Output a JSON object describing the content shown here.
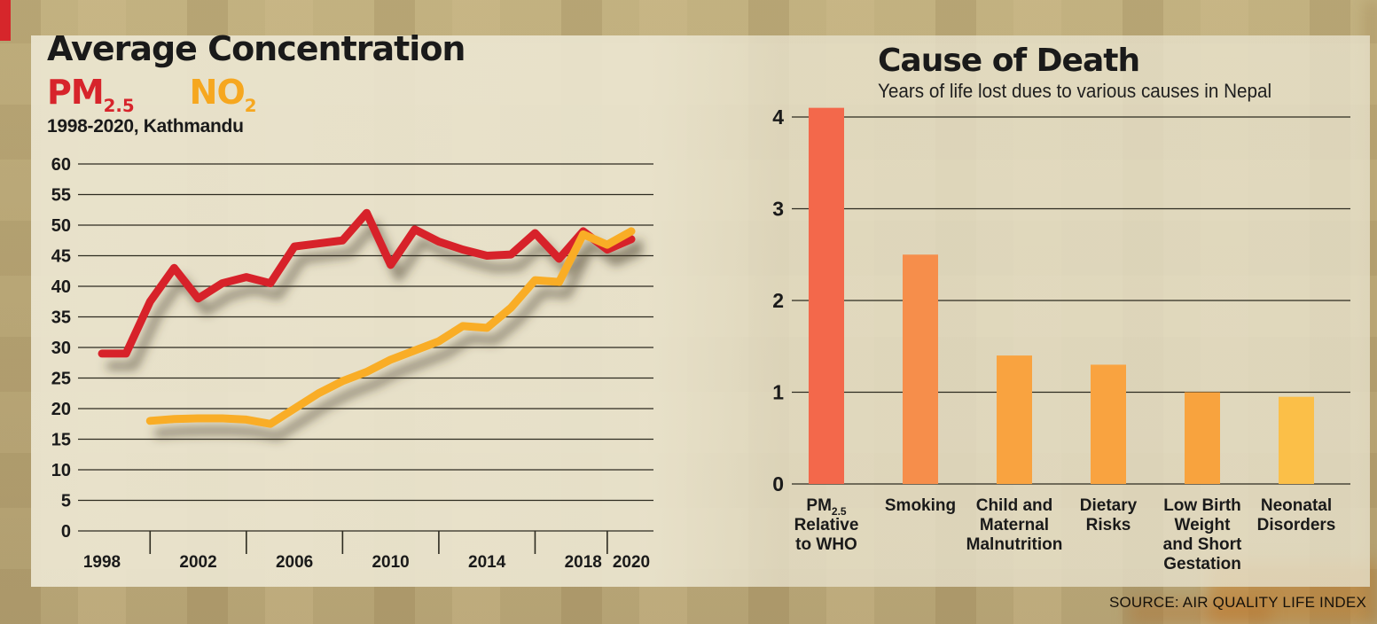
{
  "page": {
    "source_label": "SOURCE: AIR QUALITY LIFE INDEX",
    "accent_red": "#d6262b",
    "background": "#c6b88a",
    "panel": "#e9e3cd"
  },
  "left_chart": {
    "title": "Average Concentration",
    "subtitle": "1998-2020, Kathmandu",
    "legend": [
      {
        "name": "pm25",
        "label": "PM",
        "sub": "2.5",
        "color": "#d7242b"
      },
      {
        "name": "no2",
        "label": "NO",
        "sub": "2",
        "color": "#f6a71f"
      }
    ],
    "chart_data": {
      "type": "line",
      "x": [
        1998,
        1999,
        2000,
        2001,
        2002,
        2003,
        2004,
        2005,
        2006,
        2007,
        2008,
        2009,
        2010,
        2011,
        2012,
        2013,
        2014,
        2015,
        2016,
        2017,
        2018,
        2019,
        2020
      ],
      "series": [
        {
          "name": "PM2.5",
          "color": "#d7242b",
          "values": [
            29,
            29,
            37.5,
            43,
            38,
            40.5,
            41.5,
            40.5,
            46.5,
            47,
            47.5,
            52,
            43.5,
            49.3,
            47.3,
            46,
            45,
            45.2,
            48.7,
            44.5,
            49,
            46,
            47.7
          ]
        },
        {
          "name": "NO2",
          "color": "#f9ad26",
          "values": [
            null,
            null,
            18,
            18.3,
            18.4,
            18.4,
            18.2,
            17.5,
            20,
            22.5,
            24.5,
            26,
            28,
            29.5,
            31,
            33.5,
            33.2,
            36.5,
            41,
            40.7,
            48.5,
            46.8,
            49
          ]
        }
      ],
      "ylim": [
        0,
        60
      ],
      "yticks": [
        0,
        5,
        10,
        15,
        20,
        25,
        30,
        35,
        40,
        45,
        50,
        55,
        60
      ],
      "xtick_labels": [
        1998,
        2002,
        2006,
        2010,
        2014,
        2018,
        2020
      ],
      "grid": true,
      "legend_position": "top-left"
    }
  },
  "right_chart": {
    "title": "Cause of Death",
    "subtitle": "Years of life lost dues to various causes in Nepal",
    "chart_data": {
      "type": "bar",
      "categories": [
        {
          "name": "pm25-relative-to-who",
          "lines": [
            {
              "main": "PM",
              "sub": "2.5"
            },
            "Relative",
            "to WHO"
          ]
        },
        {
          "name": "smoking",
          "lines": [
            "Smoking"
          ]
        },
        {
          "name": "child-and-maternal-malnutrition",
          "lines": [
            "Child and",
            "Maternal",
            "Malnutrition"
          ]
        },
        {
          "name": "dietary-risks",
          "lines": [
            "Dietary",
            "Risks"
          ]
        },
        {
          "name": "low-birth-weight-and-short-gestation",
          "lines": [
            "Low Birth",
            "Weight",
            "and Short",
            "Gestation"
          ]
        },
        {
          "name": "neonatal-disorders",
          "lines": [
            "Neonatal",
            "Disorders"
          ]
        }
      ],
      "values": [
        4.1,
        2.5,
        1.4,
        1.3,
        1.0,
        0.95
      ],
      "colors": [
        "#f3684b",
        "#f68e4b",
        "#f9a340",
        "#f9a340",
        "#f8a33e",
        "#fbbf48"
      ],
      "ylim": [
        0,
        4.3
      ],
      "yticks": [
        0,
        1,
        2,
        3,
        4
      ],
      "grid": true
    }
  }
}
